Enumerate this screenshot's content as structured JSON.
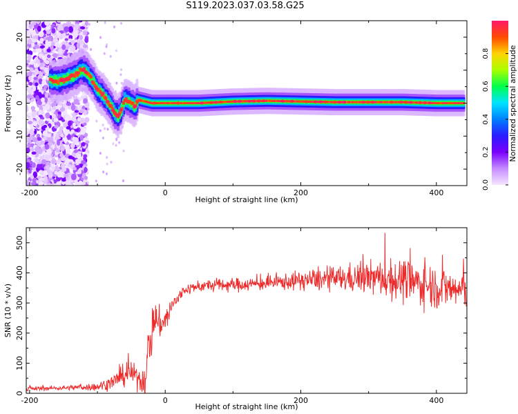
{
  "title": "S119.2023.037.03.58.G25",
  "colors": {
    "snr_line": "#ee2a2a",
    "axes": "#000000",
    "colormap": [
      "#f4e6ff",
      "#c58cff",
      "#7a00ff",
      "#2a1bff",
      "#0080ff",
      "#00e5ff",
      "#00ff4c",
      "#aaff00",
      "#ffd400",
      "#ff4a00",
      "#ff1a6a"
    ]
  },
  "chart_data": [
    {
      "type": "heatmap",
      "title": "S119.2023.037.03.58.G25",
      "xlabel": "Height of straight line (km)",
      "ylabel": "Frequency (Hz)",
      "xlim": [
        -205,
        445
      ],
      "ylim": [
        -25,
        25
      ],
      "xticks": [
        -200,
        0,
        200,
        400
      ],
      "yticks": [
        -20,
        -10,
        0,
        10,
        20
      ],
      "colorbar": {
        "label": "Normalized spectral amplitude",
        "range": [
          0.0,
          1.0
        ],
        "ticks": [
          0.0,
          0.2,
          0.4,
          0.6,
          0.8
        ]
      },
      "ridge": {
        "x": [
          -170,
          -160,
          -150,
          -140,
          -130,
          -125,
          -120,
          -115,
          -110,
          -105,
          -100,
          -95,
          -90,
          -85,
          -80,
          -75,
          -70,
          -65,
          -60,
          -55,
          -50,
          -45,
          -40,
          -30,
          -20,
          0,
          50,
          100,
          150,
          200,
          250,
          300,
          350,
          400,
          440
        ],
        "y": [
          7,
          6.5,
          7,
          8,
          9,
          10,
          10,
          9,
          7.5,
          6,
          4,
          3,
          2,
          0.5,
          -1,
          -3,
          -4,
          -2,
          1,
          0.5,
          0,
          -1,
          1,
          0.5,
          0,
          0,
          0,
          0.5,
          0.7,
          0.5,
          0.3,
          0.3,
          0.3,
          0,
          0
        ]
      },
      "noise_region_x": [
        -205,
        -115
      ]
    },
    {
      "type": "line",
      "xlabel": "Height of straight line (km)",
      "ylabel": "SNR (10 * v/v)",
      "xlim": [
        -205,
        445
      ],
      "ylim": [
        0,
        550
      ],
      "xticks": [
        -200,
        0,
        200,
        400
      ],
      "yticks": [
        0,
        100,
        200,
        300,
        400,
        500
      ],
      "series": [
        {
          "x": [
            -205,
            -150,
            -100,
            -80,
            -60,
            -50,
            -40,
            -30,
            -25,
            -20,
            -15,
            -10,
            0,
            10,
            20,
            30,
            50,
            80,
            100,
            150,
            200,
            250,
            300,
            350,
            400,
            440
          ],
          "y": [
            15,
            18,
            22,
            35,
            60,
            70,
            50,
            40,
            150,
            200,
            260,
            230,
            240,
            290,
            320,
            345,
            355,
            360,
            360,
            365,
            375,
            380,
            385,
            375,
            355,
            340
          ],
          "noise_amplitude": [
            8,
            8,
            15,
            25,
            40,
            40,
            40,
            60,
            80,
            90,
            70,
            60,
            50,
            40,
            25,
            20,
            20,
            25,
            25,
            25,
            35,
            45,
            60,
            80,
            80,
            70
          ]
        }
      ]
    }
  ]
}
